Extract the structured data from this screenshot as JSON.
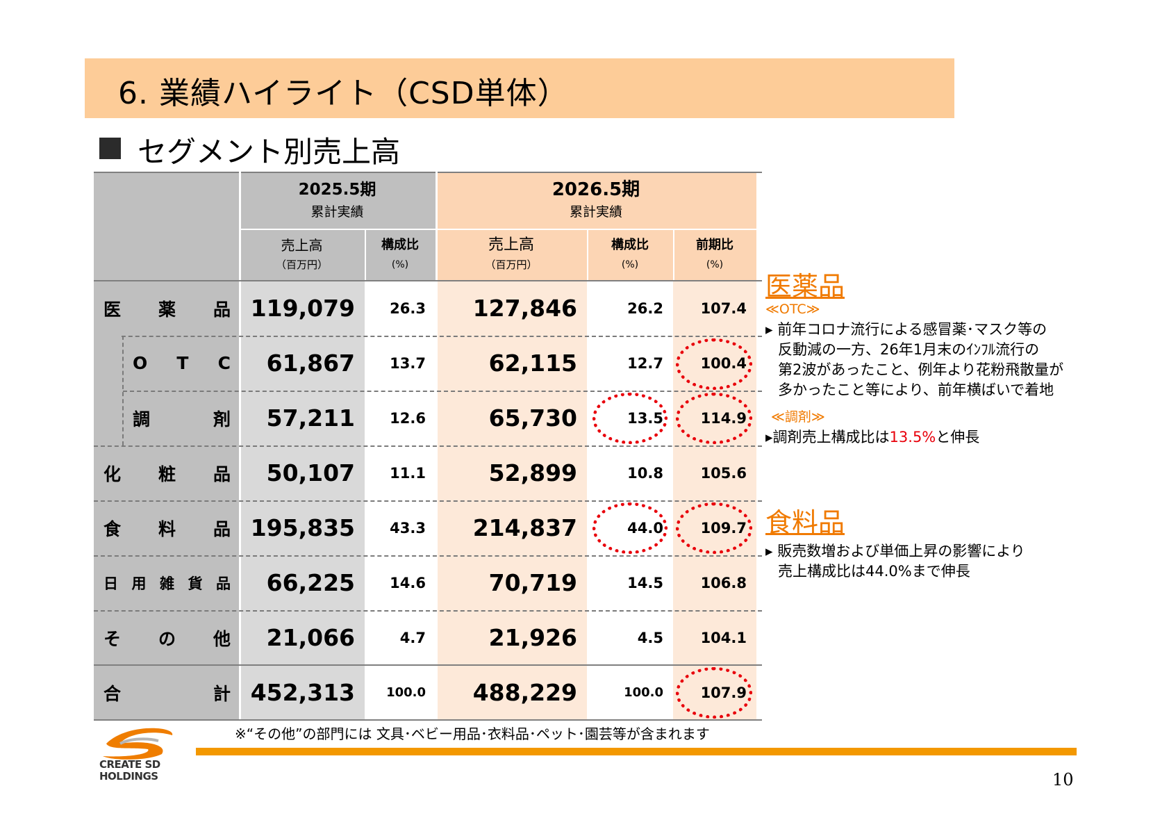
{
  "title": "6. 業績ハイライト（CSD単体）",
  "section_title": "セグメント別売上高",
  "table": {
    "period1": {
      "label": "2025.5期",
      "sub": "累計実績"
    },
    "period2": {
      "label": "2026.5期",
      "sub": "累計実績"
    },
    "col_sales": "売上高",
    "col_sales_unit": "（百万円）",
    "col_ratio": "構成比",
    "col_ratio_unit": "(%)",
    "col_yoy": "前期比",
    "col_yoy_unit": "(%)",
    "rows": [
      {
        "label": [
          "医",
          "薬",
          "品"
        ],
        "s1": "119,079",
        "r1": "26.3",
        "s2": "127,846",
        "r2": "26.2",
        "yoy": "107.4"
      },
      {
        "label": [
          "O",
          "T",
          "C"
        ],
        "s1": "61,867",
        "r1": "13.7",
        "s2": "62,115",
        "r2": "12.7",
        "yoy": "100.4"
      },
      {
        "label": [
          "調",
          "剤"
        ],
        "s1": "57,211",
        "r1": "12.6",
        "s2": "65,730",
        "r2": "13.5",
        "yoy": "114.9"
      },
      {
        "label": [
          "化",
          "粧",
          "品"
        ],
        "s1": "50,107",
        "r1": "11.1",
        "s2": "52,899",
        "r2": "10.8",
        "yoy": "105.6"
      },
      {
        "label": [
          "食",
          "料",
          "品"
        ],
        "s1": "195,835",
        "r1": "43.3",
        "s2": "214,837",
        "r2": "44.0",
        "yoy": "109.7"
      },
      {
        "label": [
          "日",
          "用",
          "雑",
          "貨",
          "品"
        ],
        "s1": "66,225",
        "r1": "14.6",
        "s2": "70,719",
        "r2": "14.5",
        "yoy": "106.8"
      },
      {
        "label": [
          "そ",
          "の",
          "他"
        ],
        "s1": "21,066",
        "r1": "4.7",
        "s2": "21,926",
        "r2": "4.5",
        "yoy": "104.1"
      },
      {
        "label": [
          "合",
          "計"
        ],
        "s1": "452,313",
        "r1": "100.0",
        "s2": "488,229",
        "r2": "100.0",
        "yoy": "107.9"
      }
    ]
  },
  "side": {
    "drug_heading": "医薬品",
    "otc_heading": "≪OTC≫",
    "otc_text_1": "▸ 前年コロナ流行による感冒薬･マスク等の",
    "otc_text_2": "反動減の一方、26年1月末のｲﾝﾌﾙ流行の",
    "otc_text_3": "第2波があったこと、例年より花粉飛散量が",
    "otc_text_4": "多かったこと等により、前年横ばいで着地",
    "disp_heading": "≪調剤≫",
    "disp_text_pre": "▸調剤売上構成比は",
    "disp_text_hl": "13.5%",
    "disp_text_post": "と伸長",
    "food_heading": "食料品",
    "food_text_1": "▸ 販売数増および単価上昇の影響により",
    "food_text_2": "売上構成比は44.0%まで伸長"
  },
  "footnote": "※“その他”の部門には 文具･ベビー用品･衣料品･ペット･園芸等が含まれます",
  "logo_line1": "CREATE SD",
  "logo_line2": "HOLDINGS",
  "page_number": "10",
  "colors": {
    "title_bg": "#fdcc98",
    "accent_orange": "#f07a00",
    "highlight_red": "#e8000b",
    "grey_col": "#d9d9d9",
    "peach_col": "#fde9d9"
  }
}
